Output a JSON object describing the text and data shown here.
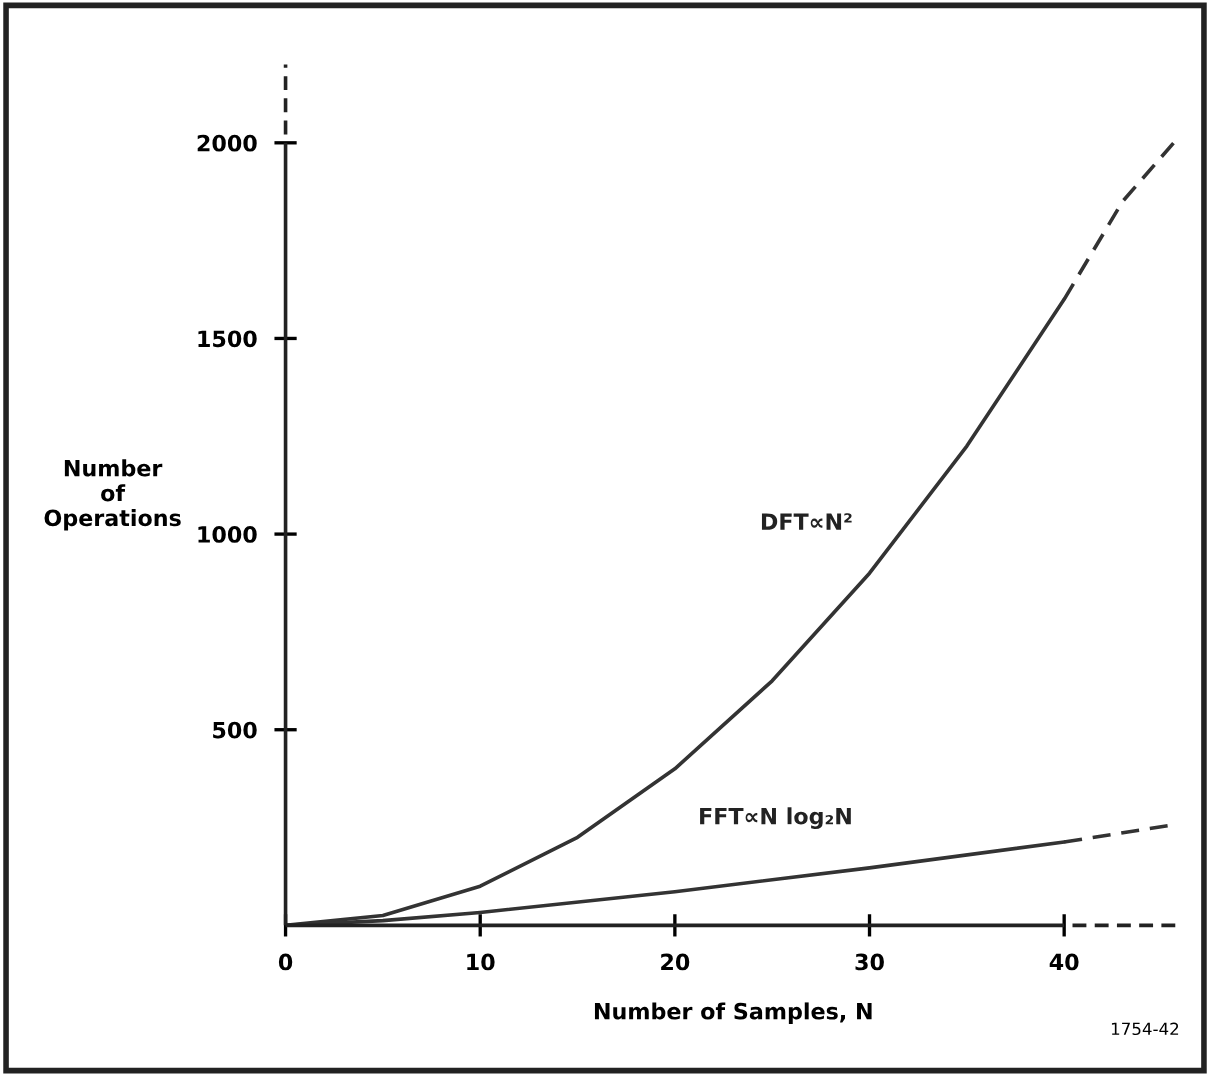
{
  "chart_data": {
    "type": "line",
    "xlabel": "Number of Samples, N",
    "ylabel": "Number\nof\nOperations",
    "xlim": [
      0,
      46
    ],
    "ylim": [
      0,
      2200
    ],
    "xticks": [
      0,
      10,
      20,
      30,
      40
    ],
    "yticks": [
      500,
      1000,
      1500,
      2000
    ],
    "series": [
      {
        "name": "DFT∝N²",
        "color": "#333333",
        "line_style": "solid",
        "x": [
          0,
          5,
          10,
          15,
          20,
          25,
          30,
          35,
          40
        ],
        "values": [
          0,
          25,
          100,
          225,
          400,
          625,
          900,
          1225,
          1600
        ]
      },
      {
        "color": "#333333",
        "line_style": "dashed",
        "x": [
          40,
          43,
          45.8
        ],
        "values": [
          1600,
          1850,
          2010
        ]
      },
      {
        "name": "FFT∝N log₂N",
        "color": "#333333",
        "line_style": "solid",
        "x": [
          0,
          5,
          10,
          20,
          30,
          40
        ],
        "values": [
          0,
          12,
          33,
          86,
          147,
          213
        ]
      },
      {
        "color": "#333333",
        "line_style": "dashed",
        "x": [
          40,
          45.5
        ],
        "values": [
          213,
          256
        ]
      }
    ],
    "grid": false,
    "legend": false,
    "annotations": [
      "1754-42"
    ]
  }
}
